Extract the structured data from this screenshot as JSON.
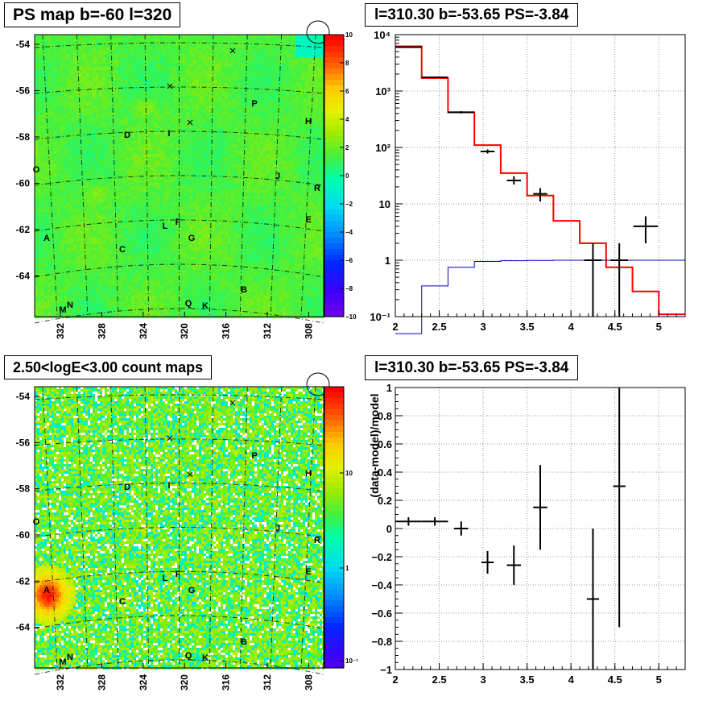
{
  "colors": {
    "red": "#ff0000",
    "blue": "#0000cc",
    "black": "#000000",
    "grid": "#999999",
    "bg": "#ffffff"
  },
  "map1": {
    "title": "PS map b=-60 l=320",
    "y_ticks": [
      "-54",
      "-56",
      "-58",
      "-60",
      "-62",
      "-64"
    ],
    "x_ticks": [
      "332",
      "328",
      "324",
      "320",
      "316",
      "312",
      "308"
    ],
    "z_ticks": [
      "10",
      "8",
      "6",
      "4",
      "2",
      "0",
      "−2",
      "−4",
      "−6",
      "−8",
      "−10"
    ],
    "sources": [
      "A",
      "B",
      "C",
      "D",
      "E",
      "F",
      "G",
      "H",
      "I",
      "J",
      "K",
      "L",
      "M",
      "N",
      "O",
      "P",
      "Q",
      "R"
    ]
  },
  "map2": {
    "title": "2.50<logE<3.00 count maps",
    "y_ticks": [
      "-54",
      "-56",
      "-58",
      "-60",
      "-62",
      "-64"
    ],
    "x_ticks": [
      "332",
      "328",
      "324",
      "320",
      "316",
      "312",
      "308"
    ],
    "z_ticks": [
      "10",
      "1",
      "10⁻¹"
    ],
    "sources": [
      "A",
      "B",
      "C",
      "D",
      "E",
      "F",
      "G",
      "H",
      "I",
      "J",
      "K",
      "L",
      "M",
      "N",
      "O",
      "P",
      "Q",
      "R"
    ]
  },
  "chart_data": [
    {
      "type": "line",
      "title": "l=310.30 b=-53.65 PS=-3.84",
      "x_scale": "linear",
      "y_scale": "log",
      "xlim": [
        2,
        5.3
      ],
      "ylim": [
        0.1,
        10000
      ],
      "grid": true,
      "x_tick_labels": [
        "2",
        "2.5",
        "3",
        "3.5",
        "4",
        "4.5",
        "5"
      ],
      "y_tick_labels": [
        "10⁻¹",
        "1",
        "10",
        "10²",
        "10³",
        "10⁴"
      ],
      "series": [
        {
          "style": "histogram",
          "color": "#ff0000",
          "x": [
            2,
            2.3,
            2.6,
            2.9,
            3.2,
            3.5,
            3.8,
            4.1,
            4.4,
            4.7,
            5.0
          ],
          "values": [
            6200,
            1700,
            420,
            110,
            35,
            14,
            5,
            2,
            0.75,
            0.28,
            0.11
          ]
        },
        {
          "style": "histogram",
          "color": "#0000cc",
          "x": [
            2,
            2.3,
            2.6,
            2.9,
            3.2,
            3.5,
            3.8,
            4.1,
            4.4,
            4.7,
            5.0
          ],
          "values": [
            0.03,
            0.35,
            0.75,
            0.95,
            0.98,
            0.99,
            1,
            1,
            1,
            1,
            1
          ]
        },
        {
          "style": "errorbars",
          "color": "#000000",
          "points": [
            {
              "x": 2.15,
              "y": 6000,
              "xerr": 0.15,
              "ylo": 5800,
              "yhi": 6200
            },
            {
              "x": 2.45,
              "y": 1750,
              "xerr": 0.15,
              "ylo": 1700,
              "yhi": 1800
            },
            {
              "x": 2.75,
              "y": 420,
              "xerr": 0.15,
              "ylo": 400,
              "yhi": 440
            },
            {
              "x": 3.05,
              "y": 85,
              "xerr": 0.08,
              "ylo": 78,
              "yhi": 92
            },
            {
              "x": 3.35,
              "y": 26,
              "xerr": 0.08,
              "ylo": 22,
              "yhi": 31
            },
            {
              "x": 3.65,
              "y": 15,
              "xerr": 0.08,
              "ylo": 11,
              "yhi": 19
            },
            {
              "x": 4.25,
              "y": 1,
              "xerr": 0.1,
              "ylo": 0.1,
              "yhi": 2
            },
            {
              "x": 4.55,
              "y": 1,
              "xerr": 0.1,
              "ylo": 0.1,
              "yhi": 2
            },
            {
              "x": 4.85,
              "y": 4,
              "xerr": 0.14,
              "ylo": 2,
              "yhi": 6
            }
          ]
        }
      ]
    },
    {
      "type": "scatter",
      "title": "l=310.30 b=-53.65 PS=-3.84",
      "ylabel": "(data-model)/model",
      "xlim": [
        2,
        5.3
      ],
      "ylim": [
        -1,
        1
      ],
      "grid": true,
      "x_tick_labels": [
        "2",
        "2.5",
        "3",
        "3.5",
        "4",
        "4.5",
        "5"
      ],
      "y_tick_labels": [
        "1",
        "0.8",
        "0.6",
        "0.4",
        "0.2",
        "0",
        "−0.2",
        "−0.4",
        "−0.6",
        "−0.8",
        "−1"
      ],
      "points": [
        {
          "x": 2.15,
          "y": 0.05,
          "xerr": 0.15,
          "yerr": 0.03
        },
        {
          "x": 2.45,
          "y": 0.05,
          "xerr": 0.15,
          "yerr": 0.03
        },
        {
          "x": 2.75,
          "y": 0.0,
          "xerr": 0.08,
          "yerr": 0.05
        },
        {
          "x": 3.05,
          "y": -0.24,
          "xerr": 0.07,
          "yerr": 0.08
        },
        {
          "x": 3.35,
          "y": -0.26,
          "xerr": 0.08,
          "yerr": 0.14
        },
        {
          "x": 3.65,
          "y": 0.15,
          "xerr": 0.08,
          "yerr": 0.3
        },
        {
          "x": 4.25,
          "y": -0.5,
          "xerr": 0.07,
          "yerr": 0.5
        },
        {
          "x": 4.55,
          "y": 0.3,
          "xerr": 0.07,
          "yerr": 1.0
        }
      ]
    }
  ]
}
